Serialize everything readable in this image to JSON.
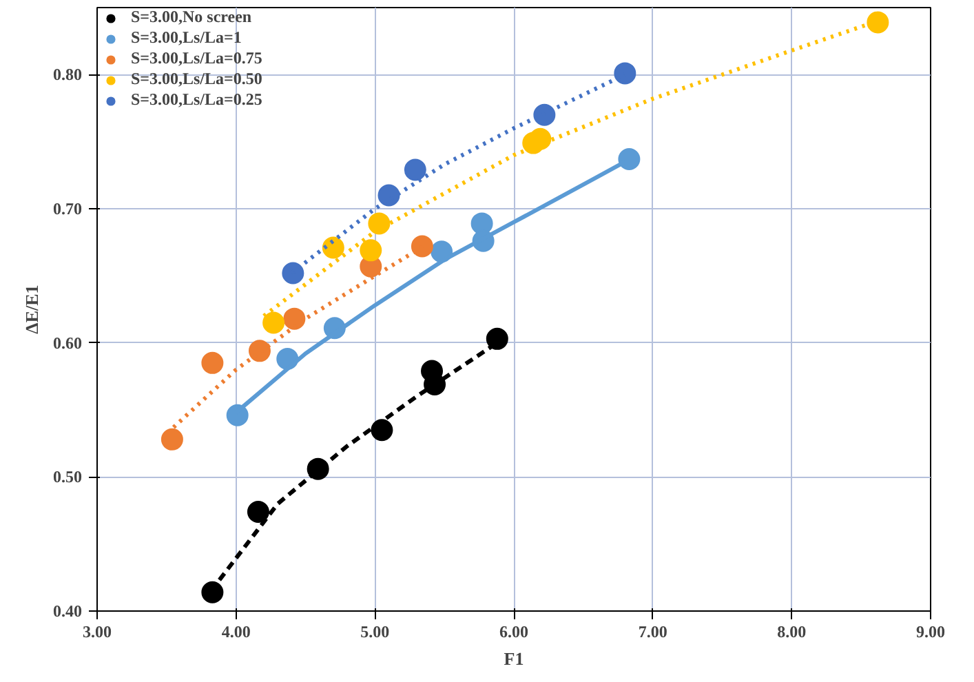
{
  "chart_data": {
    "type": "scatter",
    "xlabel": "F1",
    "ylabel": "ΔE/E1",
    "xlim": [
      3,
      9
    ],
    "ylim": [
      0.4,
      0.85
    ],
    "xticks": [
      {
        "value": 3,
        "label": "3.00"
      },
      {
        "value": 4,
        "label": "4.00"
      },
      {
        "value": 5,
        "label": "5.00"
      },
      {
        "value": 6,
        "label": "6.00"
      },
      {
        "value": 7,
        "label": "7.00"
      },
      {
        "value": 8,
        "label": "8.00"
      },
      {
        "value": 9,
        "label": "9.00"
      }
    ],
    "yticks": [
      {
        "value": 0.4,
        "label": "0.40"
      },
      {
        "value": 0.5,
        "label": "0.50"
      },
      {
        "value": 0.6,
        "label": "0.60"
      },
      {
        "value": 0.7,
        "label": "0.70"
      },
      {
        "value": 0.8,
        "label": "0.80"
      }
    ],
    "grid": true,
    "legend": "top left",
    "marker": "circle",
    "series": [
      {
        "name": "S=3.00,No screen",
        "color": "#000000",
        "x": [
          3.83,
          4.16,
          4.59,
          5.05,
          5.41,
          5.43,
          5.88
        ],
        "values": [
          0.414,
          0.474,
          0.506,
          0.535,
          0.579,
          0.569,
          0.603
        ]
      },
      {
        "name": "S=3.00,Ls/La=1",
        "color": "#5b9bd5",
        "x": [
          4.01,
          4.37,
          4.71,
          5.48,
          5.77,
          5.78,
          6.83
        ],
        "values": [
          0.546,
          0.588,
          0.611,
          0.668,
          0.689,
          0.676,
          0.737
        ]
      },
      {
        "name": "S=3.00,Ls/La=0.75",
        "color": "#ed7d31",
        "x": [
          3.54,
          3.83,
          4.17,
          4.42,
          4.97,
          5.34
        ],
        "values": [
          0.528,
          0.585,
          0.594,
          0.618,
          0.657,
          0.672
        ]
      },
      {
        "name": "S=3.00,Ls/La=0.50",
        "color": "#ffc000",
        "x": [
          4.27,
          4.7,
          4.97,
          5.03,
          6.14,
          6.19,
          8.62
        ],
        "values": [
          0.615,
          0.671,
          0.669,
          0.689,
          0.749,
          0.752,
          0.839
        ]
      },
      {
        "name": "S=3.00,Ls/La=0.25",
        "color": "#4472c4",
        "x": [
          4.41,
          5.1,
          5.29,
          6.22,
          6.8
        ],
        "values": [
          0.652,
          0.71,
          0.729,
          0.77,
          0.801
        ]
      },
      {
        "type": "line",
        "marker": "none",
        "line_style": "dashed",
        "color": "#000000",
        "x": [
          3.82,
          4.3,
          4.8,
          5.3,
          5.88
        ],
        "values": [
          0.415,
          0.48,
          0.523,
          0.56,
          0.6
        ]
      },
      {
        "type": "line",
        "marker": "none",
        "line_style": "solid",
        "color": "#5b9bd5",
        "x": [
          4.0,
          4.5,
          5.0,
          5.5,
          6.0,
          6.5,
          6.8
        ],
        "values": [
          0.548,
          0.592,
          0.628,
          0.662,
          0.69,
          0.718,
          0.735
        ]
      },
      {
        "type": "line",
        "marker": "none",
        "line_style": "dotted",
        "color": "#ed7d31",
        "x": [
          3.55,
          4.0,
          4.5,
          5.0,
          5.35
        ],
        "values": [
          0.537,
          0.58,
          0.618,
          0.65,
          0.672
        ]
      },
      {
        "type": "line",
        "marker": "none",
        "line_style": "dotted",
        "color": "#ffc000",
        "x": [
          4.2,
          5.0,
          6.0,
          7.0,
          8.0,
          8.62
        ],
        "values": [
          0.62,
          0.683,
          0.74,
          0.782,
          0.818,
          0.84
        ]
      },
      {
        "type": "line",
        "marker": "none",
        "line_style": "dotted",
        "color": "#4472c4",
        "x": [
          4.4,
          5.0,
          5.5,
          6.0,
          6.5,
          6.8
        ],
        "values": [
          0.652,
          0.7,
          0.733,
          0.76,
          0.785,
          0.8
        ]
      }
    ]
  }
}
